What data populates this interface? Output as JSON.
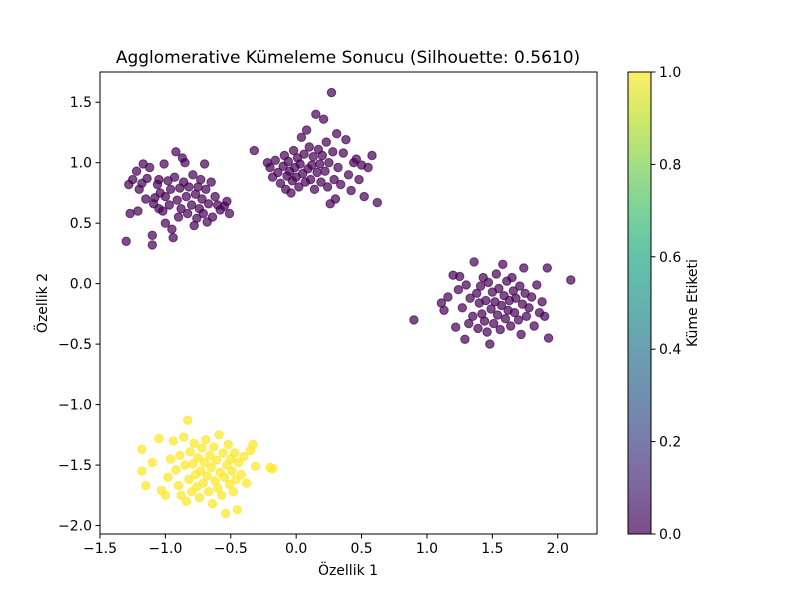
{
  "chart_data": {
    "type": "scatter",
    "title": "Agglomerative Kümeleme Sonucu (Silhouette: 0.5610)",
    "xlabel": "Özellik 1",
    "ylabel": "Özellik 2",
    "xlim": [
      -1.5,
      2.3
    ],
    "ylim": [
      -2.07,
      1.75
    ],
    "xticks": [
      -1.5,
      -1.0,
      -0.5,
      0.0,
      0.5,
      1.0,
      1.5,
      2.0
    ],
    "xtick_labels": [
      "−1.5",
      "−1.0",
      "−0.5",
      "0.0",
      "0.5",
      "1.0",
      "1.5",
      "2.0"
    ],
    "yticks": [
      -2.0,
      -1.5,
      -1.0,
      -0.5,
      0.0,
      0.5,
      1.0,
      1.5
    ],
    "ytick_labels": [
      "−2.0",
      "−1.5",
      "−1.0",
      "−0.5",
      "0.0",
      "0.5",
      "1.0",
      "1.5"
    ],
    "grid": false,
    "colormap": "viridis",
    "point_alpha": 0.7,
    "colorbar": {
      "label": "Küme Etiketi",
      "range": [
        0.0,
        1.0
      ],
      "ticks": [
        0.0,
        0.2,
        0.4,
        0.6,
        0.8,
        1.0
      ],
      "tick_labels": [
        "0.0",
        "0.2",
        "0.4",
        "0.6",
        "0.8",
        "1.0"
      ]
    },
    "series": [
      {
        "label_value": 0,
        "color": "#440154",
        "points": [
          [
            -1.3,
            0.35
          ],
          [
            -1.28,
            0.82
          ],
          [
            -1.27,
            0.58
          ],
          [
            -1.25,
            0.86
          ],
          [
            -1.22,
            0.93
          ],
          [
            -1.21,
            0.6
          ],
          [
            -1.2,
            0.78
          ],
          [
            -1.18,
            0.83
          ],
          [
            -1.17,
            0.99
          ],
          [
            -1.15,
            0.7
          ],
          [
            -1.14,
            0.87
          ],
          [
            -1.12,
            0.96
          ],
          [
            -1.1,
            0.4
          ],
          [
            -1.1,
            0.32
          ],
          [
            -1.09,
            0.66
          ],
          [
            -1.08,
            0.71
          ],
          [
            -1.06,
            0.82
          ],
          [
            -1.05,
            0.86
          ],
          [
            -1.05,
            0.62
          ],
          [
            -1.04,
            0.75
          ],
          [
            -1.02,
            0.6
          ],
          [
            -1.01,
            0.99
          ],
          [
            -1.0,
            0.72
          ],
          [
            -1.0,
            0.5
          ],
          [
            -0.98,
            0.85
          ],
          [
            -0.97,
            0.65
          ],
          [
            -0.96,
            0.78
          ],
          [
            -0.95,
            0.45
          ],
          [
            -0.94,
            0.38
          ],
          [
            -0.93,
            0.88
          ],
          [
            -0.92,
            1.09
          ],
          [
            -0.91,
            0.69
          ],
          [
            -0.9,
            0.55
          ],
          [
            -0.89,
            0.79
          ],
          [
            -0.88,
            0.62
          ],
          [
            -0.87,
            1.04
          ],
          [
            -0.86,
            0.84
          ],
          [
            -0.85,
            1.0
          ],
          [
            -0.84,
            0.72
          ],
          [
            -0.83,
            0.58
          ],
          [
            -0.82,
            0.8
          ],
          [
            -0.8,
            0.65
          ],
          [
            -0.79,
            0.9
          ],
          [
            -0.78,
            0.48
          ],
          [
            -0.77,
            0.74
          ],
          [
            -0.76,
            0.54
          ],
          [
            -0.75,
            0.8
          ],
          [
            -0.74,
            0.62
          ],
          [
            -0.73,
            0.86
          ],
          [
            -0.72,
            0.7
          ],
          [
            -0.71,
            0.58
          ],
          [
            -0.7,
            0.99
          ],
          [
            -0.69,
            0.78
          ],
          [
            -0.68,
            0.51
          ],
          [
            -0.67,
            0.66
          ],
          [
            -0.65,
            0.84
          ],
          [
            -0.64,
            0.55
          ],
          [
            -0.62,
            0.72
          ],
          [
            -0.6,
            0.65
          ],
          [
            -0.58,
            0.61
          ],
          [
            -0.55,
            0.64
          ],
          [
            -0.53,
            0.68
          ],
          [
            -0.51,
            0.58
          ],
          [
            -0.32,
            1.1
          ],
          [
            -0.22,
            1.0
          ],
          [
            -0.2,
            0.96
          ],
          [
            -0.18,
            0.88
          ],
          [
            -0.16,
            1.02
          ],
          [
            -0.14,
            0.92
          ],
          [
            -0.12,
            0.83
          ],
          [
            -0.1,
            0.97
          ],
          [
            -0.09,
            1.06
          ],
          [
            -0.08,
            0.78
          ],
          [
            -0.07,
            0.89
          ],
          [
            -0.06,
            1.01
          ],
          [
            -0.05,
            0.93
          ],
          [
            -0.04,
            0.75
          ],
          [
            -0.03,
            0.85
          ],
          [
            -0.02,
            1.1
          ],
          [
            -0.01,
            0.96
          ],
          [
            0.0,
            0.88
          ],
          [
            0.01,
            1.04
          ],
          [
            0.02,
            0.8
          ],
          [
            0.03,
            0.99
          ],
          [
            0.04,
            1.21
          ],
          [
            0.05,
            0.91
          ],
          [
            0.06,
            1.07
          ],
          [
            0.07,
            0.84
          ],
          [
            0.08,
            1.27
          ],
          [
            0.09,
            0.95
          ],
          [
            0.1,
            1.13
          ],
          [
            0.11,
            0.86
          ],
          [
            0.12,
            0.98
          ],
          [
            0.13,
            1.05
          ],
          [
            0.14,
            0.78
          ],
          [
            0.15,
            1.4
          ],
          [
            0.16,
            0.92
          ],
          [
            0.17,
            1.11
          ],
          [
            0.18,
            0.99
          ],
          [
            0.19,
            0.84
          ],
          [
            0.2,
            1.06
          ],
          [
            0.21,
            1.36
          ],
          [
            0.22,
            0.93
          ],
          [
            0.23,
            1.17
          ],
          [
            0.24,
            0.8
          ],
          [
            0.25,
            1.0
          ],
          [
            0.26,
            0.66
          ],
          [
            0.27,
            1.58
          ],
          [
            0.28,
            1.09
          ],
          [
            0.29,
            0.86
          ],
          [
            0.3,
            0.7
          ],
          [
            0.31,
            1.24
          ],
          [
            0.32,
            0.96
          ],
          [
            0.34,
            0.82
          ],
          [
            0.36,
            1.08
          ],
          [
            0.38,
            1.19
          ],
          [
            0.4,
            0.9
          ],
          [
            0.42,
            0.77
          ],
          [
            0.44,
            1.0
          ],
          [
            0.46,
            1.03
          ],
          [
            0.48,
            0.86
          ],
          [
            0.5,
            0.98
          ],
          [
            0.52,
            0.72
          ],
          [
            0.55,
            0.96
          ],
          [
            0.58,
            1.06
          ],
          [
            0.62,
            0.67
          ],
          [
            0.9,
            -0.3
          ],
          [
            1.11,
            -0.16
          ],
          [
            1.13,
            -0.22
          ],
          [
            1.16,
            -0.11
          ],
          [
            1.2,
            0.07
          ],
          [
            1.22,
            -0.36
          ],
          [
            1.24,
            -0.05
          ],
          [
            1.25,
            0.06
          ],
          [
            1.27,
            -0.2
          ],
          [
            1.29,
            -0.46
          ],
          [
            1.3,
            -0.01
          ],
          [
            1.32,
            -0.33
          ],
          [
            1.33,
            -0.12
          ],
          [
            1.35,
            -0.27
          ],
          [
            1.36,
            0.18
          ],
          [
            1.38,
            -0.08
          ],
          [
            1.39,
            -0.37
          ],
          [
            1.4,
            -0.16
          ],
          [
            1.41,
            -0.02
          ],
          [
            1.42,
            -0.25
          ],
          [
            1.43,
            0.05
          ],
          [
            1.44,
            -0.31
          ],
          [
            1.45,
            -0.14
          ],
          [
            1.46,
            -0.4
          ],
          [
            1.47,
            0.01
          ],
          [
            1.48,
            -0.5
          ],
          [
            1.49,
            -0.21
          ],
          [
            1.5,
            -0.07
          ],
          [
            1.51,
            -0.33
          ],
          [
            1.52,
            -0.15
          ],
          [
            1.53,
            0.08
          ],
          [
            1.54,
            -0.26
          ],
          [
            1.55,
            -0.04
          ],
          [
            1.56,
            -0.38
          ],
          [
            1.57,
            -0.18
          ],
          [
            1.58,
            0.16
          ],
          [
            1.59,
            -0.1
          ],
          [
            1.6,
            -0.29
          ],
          [
            1.61,
            0.02
          ],
          [
            1.62,
            -0.22
          ],
          [
            1.63,
            -0.14
          ],
          [
            1.64,
            -0.35
          ],
          [
            1.65,
            0.05
          ],
          [
            1.66,
            -0.06
          ],
          [
            1.67,
            -0.24
          ],
          [
            1.68,
            -0.12
          ],
          [
            1.7,
            -0.3
          ],
          [
            1.71,
            -0.02
          ],
          [
            1.72,
            -0.42
          ],
          [
            1.73,
            -0.17
          ],
          [
            1.74,
            0.13
          ],
          [
            1.75,
            -0.08
          ],
          [
            1.76,
            -0.27
          ],
          [
            1.78,
            -0.2
          ],
          [
            1.8,
            -0.11
          ],
          [
            1.82,
            -0.35
          ],
          [
            1.84,
            -0.01
          ],
          [
            1.86,
            -0.24
          ],
          [
            1.88,
            -0.15
          ],
          [
            1.9,
            -0.27
          ],
          [
            1.92,
            0.13
          ],
          [
            1.93,
            -0.45
          ],
          [
            2.1,
            0.03
          ]
        ]
      },
      {
        "label_value": 1,
        "color": "#fde725",
        "points": [
          [
            -1.18,
            -1.37
          ],
          [
            -1.18,
            -1.55
          ],
          [
            -1.15,
            -1.67
          ],
          [
            -1.1,
            -1.48
          ],
          [
            -1.05,
            -1.28
          ],
          [
            -1.03,
            -1.71
          ],
          [
            -1.0,
            -1.75
          ],
          [
            -0.98,
            -1.6
          ],
          [
            -0.96,
            -1.45
          ],
          [
            -0.94,
            -1.3
          ],
          [
            -0.92,
            -1.54
          ],
          [
            -0.9,
            -1.67
          ],
          [
            -0.89,
            -1.42
          ],
          [
            -0.88,
            -1.75
          ],
          [
            -0.86,
            -1.27
          ],
          [
            -0.85,
            -1.5
          ],
          [
            -0.84,
            -1.8
          ],
          [
            -0.83,
            -1.13
          ],
          [
            -0.82,
            -1.62
          ],
          [
            -0.81,
            -1.39
          ],
          [
            -0.8,
            -1.72
          ],
          [
            -0.79,
            -1.49
          ],
          [
            -0.78,
            -1.32
          ],
          [
            -0.77,
            -1.58
          ],
          [
            -0.76,
            -1.68
          ],
          [
            -0.75,
            -1.44
          ],
          [
            -0.74,
            -1.77
          ],
          [
            -0.73,
            -1.55
          ],
          [
            -0.72,
            -1.36
          ],
          [
            -0.71,
            -1.65
          ],
          [
            -0.7,
            -1.48
          ],
          [
            -0.69,
            -1.29
          ],
          [
            -0.68,
            -1.59
          ],
          [
            -0.67,
            -1.72
          ],
          [
            -0.66,
            -1.42
          ],
          [
            -0.65,
            -1.52
          ],
          [
            -0.64,
            -1.82
          ],
          [
            -0.63,
            -1.35
          ],
          [
            -0.62,
            -1.63
          ],
          [
            -0.61,
            -1.46
          ],
          [
            -0.6,
            -1.69
          ],
          [
            -0.59,
            -1.25
          ],
          [
            -0.58,
            -1.56
          ],
          [
            -0.57,
            -1.75
          ],
          [
            -0.56,
            -1.4
          ],
          [
            -0.55,
            -1.6
          ],
          [
            -0.54,
            -1.9
          ],
          [
            -0.53,
            -1.5
          ],
          [
            -0.52,
            -1.33
          ],
          [
            -0.51,
            -1.66
          ],
          [
            -0.5,
            -1.45
          ],
          [
            -0.49,
            -1.55
          ],
          [
            -0.48,
            -1.72
          ],
          [
            -0.47,
            -1.4
          ],
          [
            -0.46,
            -1.62
          ],
          [
            -0.45,
            -1.87
          ],
          [
            -0.44,
            -1.48
          ],
          [
            -0.42,
            -1.58
          ],
          [
            -0.4,
            -1.43
          ],
          [
            -0.38,
            -1.65
          ],
          [
            -0.35,
            -1.38
          ],
          [
            -0.33,
            -1.33
          ],
          [
            -0.31,
            -1.51
          ],
          [
            -0.2,
            -1.52
          ],
          [
            -0.18,
            -1.53
          ]
        ]
      }
    ]
  }
}
